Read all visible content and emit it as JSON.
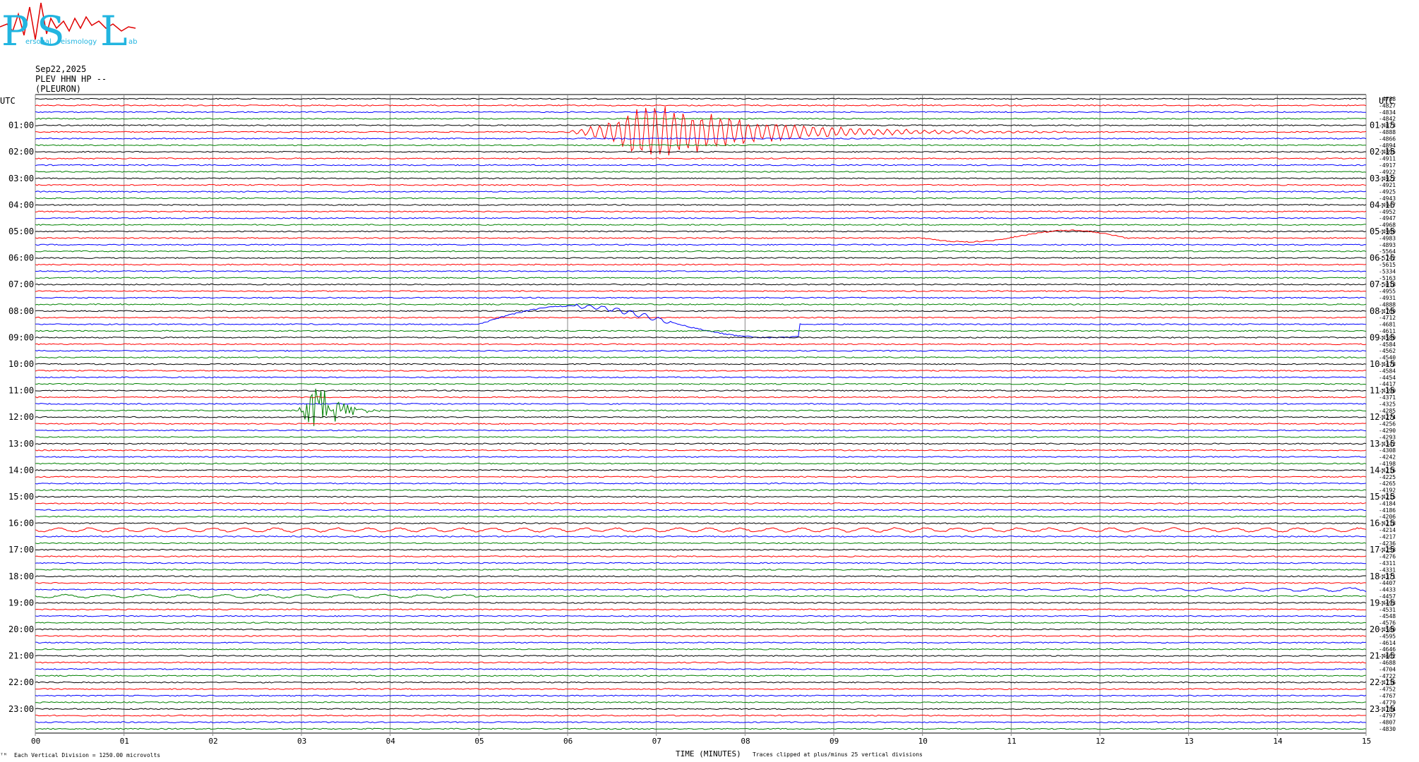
{
  "logo": {
    "letters": [
      "P",
      "S",
      "L"
    ],
    "small_text_1": "ersonal",
    "small_text_2": "eismology",
    "small_text_3": "ab"
  },
  "header": {
    "date": "Sep22,2025",
    "station": "PLEV HHN HP --",
    "location": "(PLEURON)"
  },
  "left_axis_title": "UTC",
  "right_axis_title": "UTC",
  "footer": {
    "division_note": "Each Vertical Division = 1250.00 microvolts",
    "x_title": "TIME (MINUTES)",
    "clip_note": "Traces clipped at plus/minus 25 vertical divisions",
    "corner_mark": "ᵀᴹ"
  },
  "colors": {
    "cycle": [
      "#000000",
      "#ff0000",
      "#0000ff",
      "#008000"
    ],
    "grid": "#888888"
  },
  "chart_data": {
    "type": "helicorder",
    "rows_per_hour": 4,
    "minutes_per_row": 15,
    "x_ticks": [
      "00",
      "01",
      "02",
      "03",
      "04",
      "05",
      "06",
      "07",
      "08",
      "09",
      "10",
      "11",
      "12",
      "13",
      "14",
      "15"
    ],
    "left_hour_labels": [
      "01:00",
      "02:00",
      "03:00",
      "04:00",
      "05:00",
      "06:00",
      "07:00",
      "08:00",
      "09:00",
      "10:00",
      "11:00",
      "12:00",
      "13:00",
      "14:00",
      "15:00",
      "16:00",
      "17:00",
      "18:00",
      "19:00",
      "20:00",
      "21:00",
      "22:00",
      "23:00"
    ],
    "right_hour_labels": [
      "01:15",
      "02:15",
      "03:15",
      "04:15",
      "05:15",
      "06:15",
      "07:15",
      "08:15",
      "09:15",
      "10:15",
      "11:15",
      "12:15",
      "13:15",
      "14:15",
      "15:15",
      "16:15",
      "17:15",
      "18:15",
      "19:15",
      "20:15",
      "21:15",
      "22:15",
      "23:15"
    ],
    "row_values": [
      "-4788",
      "-4827",
      "-4834",
      "-4842",
      "-4873",
      "-4888",
      "-4866",
      "-4894",
      "-4895",
      "-4911",
      "-4917",
      "-4922",
      "-4922",
      "-4921",
      "-4925",
      "-4943",
      "-4947",
      "-4952",
      "-4947",
      "-4968",
      "-4969",
      "-4983",
      "-4893",
      "-5564",
      "-5742",
      "-5615",
      "-5334",
      "-5163",
      "-5018",
      "-4955",
      "-4931",
      "-4888",
      "-4769",
      "-4712",
      "-4681",
      "-4611",
      "-4589",
      "-4584",
      "-4562",
      "-4540",
      "-4478",
      "-4584",
      "-4454",
      "-4417",
      "-4390",
      "-4371",
      "-4325",
      "-4285",
      "-4274",
      "-4256",
      "-4290",
      "-4293",
      "-4342",
      "-4308",
      "-4242",
      "-4198",
      "-4216",
      "-4225",
      "-4265",
      "-4192",
      "-4215",
      "-4184",
      "-4186",
      "-4206",
      "-4218",
      "-4214",
      "-4217",
      "-4236",
      "-4258",
      "-4276",
      "-4311",
      "-4331",
      "-4371",
      "-4407",
      "-4433",
      "-4457",
      "-4493",
      "-4531",
      "-4548",
      "-4576",
      "-4580",
      "-4595",
      "-4614",
      "-4646",
      "-4662",
      "-4688",
      "-4704",
      "-4722",
      "-4736",
      "-4752",
      "-4767",
      "-4779",
      "-4784",
      "-4797",
      "-4807",
      "-4830"
    ],
    "events": [
      {
        "name": "large teleseism",
        "row": 5,
        "start_min": 5.8,
        "peak_min": 6.95,
        "end_min": 12.0
      },
      {
        "name": "local event",
        "row": 47,
        "start_min": 2.95,
        "peak_min": 3.2,
        "end_min": 4.0
      },
      {
        "name": "blue long-period swing",
        "row": 34,
        "start_min": 5.0,
        "peak_min": 6.7,
        "end_min": 8.6
      },
      {
        "name": "red long-period swing",
        "row": 21,
        "start_min": 10.0,
        "peak_min": 11.5,
        "end_min": 12.3
      }
    ]
  }
}
